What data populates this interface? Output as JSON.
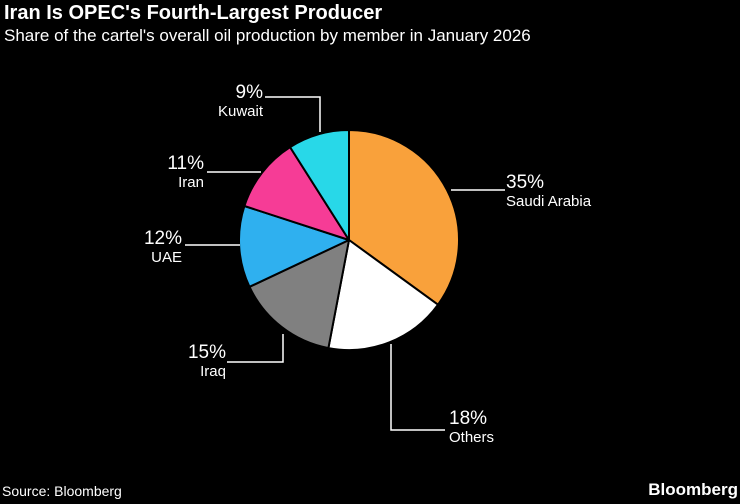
{
  "header": {
    "title": "Iran Is OPEC's Fourth-Largest Producer",
    "subtitle": "Share of the cartel's overall oil production by member in January 2026"
  },
  "footer": {
    "source": "Source: Bloomberg",
    "logo": "Bloomberg"
  },
  "colors": {
    "background": "#000000",
    "text": "#FFFFFF",
    "leader_line": "#FFFFFF",
    "slice_stroke": "#000000"
  },
  "chart_data": {
    "type": "pie",
    "title": "Iran Is OPEC's Fourth-Largest Producer",
    "subtitle": "Share of the cartel's overall oil production by member in January 2026",
    "unit": "%",
    "start_angle_deg": 0,
    "direction": "clockwise",
    "legend_position": "callout-labels",
    "slices": [
      {
        "name": "Saudi Arabia",
        "value": 35,
        "pct_label": "35%",
        "color": "#F9A13B"
      },
      {
        "name": "Others",
        "value": 18,
        "pct_label": "18%",
        "color": "#FFFFFF"
      },
      {
        "name": "Iraq",
        "value": 15,
        "pct_label": "15%",
        "color": "#808080"
      },
      {
        "name": "UAE",
        "value": 12,
        "pct_label": "12%",
        "color": "#2FB0EF"
      },
      {
        "name": "Iran",
        "value": 11,
        "pct_label": "11%",
        "color": "#F63C96"
      },
      {
        "name": "Kuwait",
        "value": 9,
        "pct_label": "9%",
        "color": "#28D8E8"
      }
    ]
  }
}
